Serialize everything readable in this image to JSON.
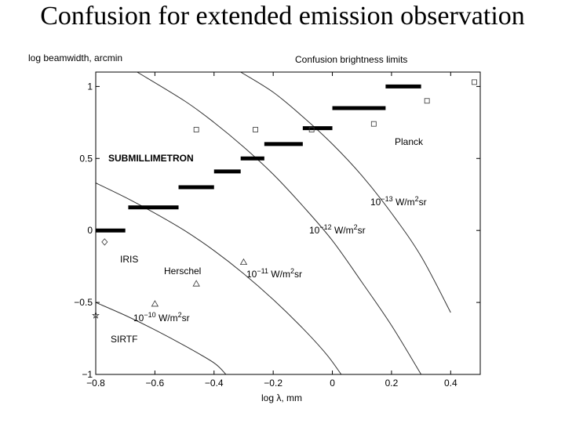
{
  "slide": {
    "title": "Confusion for extended emission observation"
  },
  "chart_data": {
    "type": "line",
    "title": "Confusion brightness limits",
    "xlabel": "log λ, mm",
    "ylabel": "log beamwidth, arcmin",
    "xlim": [
      -0.8,
      0.5
    ],
    "ylim": [
      -1,
      1.1
    ],
    "grid": false,
    "x_ticks": [
      "−0.8",
      "−0.6",
      "−0.4",
      "−0.2",
      "0",
      "0.2",
      "0.4"
    ],
    "y_ticks": [
      "−1",
      "−0.5",
      "0",
      "0.5",
      "1"
    ],
    "curves": [
      {
        "label_pre": "10",
        "label_exp": "−13",
        "label_post": " W/m",
        "label_sq": "2",
        "label_end": "sr",
        "points": [
          [
            -0.31,
            1.1
          ],
          [
            -0.2,
            0.96
          ],
          [
            -0.1,
            0.79
          ],
          [
            0.0,
            0.6
          ],
          [
            0.1,
            0.38
          ],
          [
            0.2,
            0.12
          ],
          [
            0.3,
            -0.18
          ],
          [
            0.4,
            -0.57
          ]
        ]
      },
      {
        "label_pre": "10",
        "label_exp": "−12",
        "label_post": " W/m",
        "label_sq": "2",
        "label_end": "sr",
        "points": [
          [
            -0.66,
            1.1
          ],
          [
            -0.5,
            0.9
          ],
          [
            -0.4,
            0.75
          ],
          [
            -0.3,
            0.58
          ],
          [
            -0.2,
            0.39
          ],
          [
            -0.1,
            0.17
          ],
          [
            0.0,
            -0.07
          ],
          [
            0.1,
            -0.36
          ],
          [
            0.2,
            -0.66
          ],
          [
            0.3,
            -1.0
          ]
        ]
      },
      {
        "label_pre": "10",
        "label_exp": "−11",
        "label_post": " W/m",
        "label_sq": "2",
        "label_end": "sr",
        "points": [
          [
            -0.8,
            0.33
          ],
          [
            -0.7,
            0.23
          ],
          [
            -0.6,
            0.12
          ],
          [
            -0.5,
            0.0
          ],
          [
            -0.4,
            -0.14
          ],
          [
            -0.3,
            -0.3
          ],
          [
            -0.2,
            -0.48
          ],
          [
            -0.1,
            -0.68
          ],
          [
            -0.02,
            -0.86
          ],
          [
            0.03,
            -1.0
          ]
        ]
      },
      {
        "label_pre": "10",
        "label_exp": "−10",
        "label_post": " W/m",
        "label_sq": "2",
        "label_end": "sr",
        "points": [
          [
            -0.8,
            -0.5
          ],
          [
            -0.7,
            -0.59
          ],
          [
            -0.6,
            -0.69
          ],
          [
            -0.5,
            -0.8
          ],
          [
            -0.4,
            -0.92
          ],
          [
            -0.36,
            -1.0
          ]
        ]
      }
    ],
    "submillimetron_segments": [
      [
        -0.8,
        -0.7,
        0.0
      ],
      [
        -0.69,
        -0.52,
        0.16
      ],
      [
        -0.52,
        -0.4,
        0.3
      ],
      [
        -0.4,
        -0.31,
        0.41
      ],
      [
        -0.31,
        -0.23,
        0.5
      ],
      [
        -0.23,
        -0.1,
        0.6
      ],
      [
        -0.1,
        0.0,
        0.71
      ],
      [
        0.0,
        0.18,
        0.85
      ],
      [
        0.18,
        0.3,
        1.0
      ]
    ],
    "planck_points": [
      [
        -0.46,
        0.7
      ],
      [
        -0.26,
        0.7
      ],
      [
        -0.07,
        0.7
      ],
      [
        0.14,
        0.74
      ],
      [
        0.32,
        0.9
      ],
      [
        0.48,
        1.03
      ]
    ],
    "herschel_points": [
      [
        -0.6,
        -0.51
      ],
      [
        -0.46,
        -0.37
      ],
      [
        -0.3,
        -0.22
      ]
    ],
    "iris_points": [
      [
        -0.77,
        -0.08
      ]
    ],
    "sirtf_points": [
      [
        -0.8,
        -0.59
      ]
    ],
    "annotations": {
      "submillimetron": "SUBMILLIMETRON",
      "planck": "Planck",
      "iris": "IRIS",
      "herschel": "Herschel",
      "sirtf": "SIRTF"
    }
  }
}
